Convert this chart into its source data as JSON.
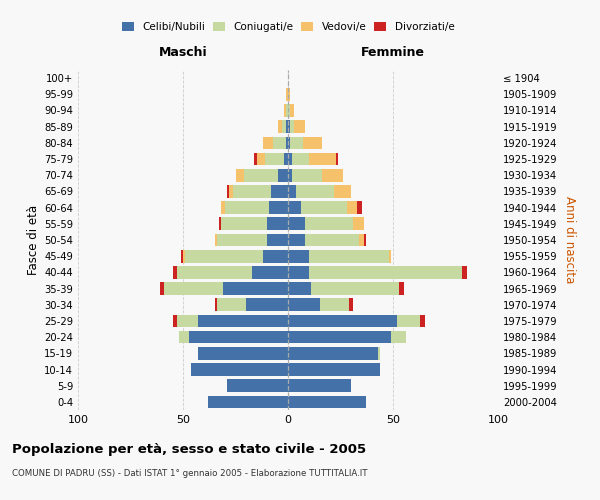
{
  "age_groups": [
    "0-4",
    "5-9",
    "10-14",
    "15-19",
    "20-24",
    "25-29",
    "30-34",
    "35-39",
    "40-44",
    "45-49",
    "50-54",
    "55-59",
    "60-64",
    "65-69",
    "70-74",
    "75-79",
    "80-84",
    "85-89",
    "90-94",
    "95-99",
    "100+"
  ],
  "birth_years": [
    "2000-2004",
    "1995-1999",
    "1990-1994",
    "1985-1989",
    "1980-1984",
    "1975-1979",
    "1970-1974",
    "1965-1969",
    "1960-1964",
    "1955-1959",
    "1950-1954",
    "1945-1949",
    "1940-1944",
    "1935-1939",
    "1930-1934",
    "1925-1929",
    "1920-1924",
    "1915-1919",
    "1910-1914",
    "1905-1909",
    "≤ 1904"
  ],
  "maschi": {
    "celibi": [
      38,
      29,
      46,
      43,
      47,
      43,
      20,
      31,
      17,
      12,
      10,
      10,
      9,
      8,
      5,
      2,
      1,
      1,
      0,
      0,
      0
    ],
    "coniugati": [
      0,
      0,
      0,
      0,
      5,
      10,
      14,
      28,
      36,
      37,
      24,
      22,
      21,
      18,
      16,
      9,
      6,
      2,
      1,
      0,
      0
    ],
    "vedovi": [
      0,
      0,
      0,
      0,
      0,
      0,
      0,
      0,
      0,
      1,
      1,
      0,
      2,
      2,
      4,
      4,
      5,
      2,
      1,
      1,
      0
    ],
    "divorziati": [
      0,
      0,
      0,
      0,
      0,
      2,
      1,
      2,
      2,
      1,
      0,
      1,
      0,
      1,
      0,
      1,
      0,
      0,
      0,
      0,
      0
    ]
  },
  "femmine": {
    "nubili": [
      37,
      30,
      44,
      43,
      49,
      52,
      15,
      11,
      10,
      10,
      8,
      8,
      6,
      4,
      2,
      2,
      1,
      1,
      0,
      0,
      0
    ],
    "coniugate": [
      0,
      0,
      0,
      1,
      7,
      11,
      14,
      42,
      73,
      38,
      26,
      23,
      22,
      18,
      14,
      8,
      6,
      2,
      1,
      0,
      0
    ],
    "vedove": [
      0,
      0,
      0,
      0,
      0,
      0,
      0,
      0,
      0,
      1,
      2,
      5,
      5,
      8,
      10,
      13,
      9,
      5,
      2,
      1,
      0
    ],
    "divorziate": [
      0,
      0,
      0,
      0,
      0,
      2,
      2,
      2,
      2,
      0,
      1,
      0,
      2,
      0,
      0,
      1,
      0,
      0,
      0,
      0,
      0
    ]
  },
  "colors": {
    "celibi": "#4472a8",
    "coniugati": "#c5d9a0",
    "vedovi": "#f5c26b",
    "divorziati": "#cc2222"
  },
  "xlim": 100,
  "title": "Popolazione per età, sesso e stato civile - 2005",
  "subtitle": "COMUNE DI PADRU (SS) - Dati ISTAT 1° gennaio 2005 - Elaborazione TUTTITALIA.IT",
  "ylabel_left": "Fasce di età",
  "ylabel_right": "Anni di nascita",
  "xlabel_left": "Maschi",
  "xlabel_right": "Femmine",
  "bg_color": "#f8f8f8",
  "grid_color": "#cccccc"
}
